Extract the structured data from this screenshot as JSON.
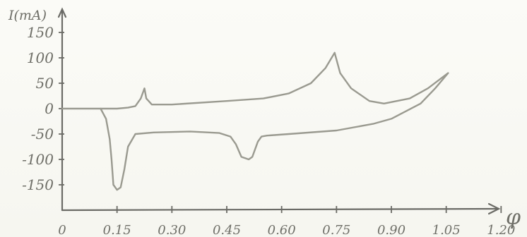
{
  "chart_data": {
    "type": "line",
    "title": "",
    "ylabel": "I(mA)",
    "xlabel": "φ",
    "xlim": [
      0,
      1.29
    ],
    "ylim": [
      -190,
      190
    ],
    "x_ticks": [
      "0",
      "0.15",
      "0.30",
      "0.45",
      "0.60",
      "0.75",
      "0.90",
      "1.05",
      "1.20"
    ],
    "x_tick_values": [
      0,
      0.15,
      0.3,
      0.45,
      0.6,
      0.75,
      0.9,
      1.05,
      1.2
    ],
    "y_ticks": [
      "150",
      "100",
      "50",
      "0",
      "-50",
      "-100",
      "-150"
    ],
    "y_tick_values": [
      150,
      100,
      50,
      0,
      -50,
      -100,
      -150
    ],
    "grid": false,
    "series": [
      {
        "values_xy": [
          [
            0.0,
            0
          ],
          [
            0.1,
            0
          ],
          [
            0.15,
            0
          ],
          [
            0.18,
            2
          ],
          [
            0.2,
            5
          ],
          [
            0.215,
            20
          ],
          [
            0.225,
            40
          ],
          [
            0.23,
            20
          ],
          [
            0.245,
            8
          ],
          [
            0.3,
            8
          ],
          [
            0.45,
            15
          ],
          [
            0.55,
            20
          ],
          [
            0.62,
            30
          ],
          [
            0.68,
            50
          ],
          [
            0.72,
            80
          ],
          [
            0.745,
            110
          ],
          [
            0.76,
            70
          ],
          [
            0.79,
            40
          ],
          [
            0.84,
            15
          ],
          [
            0.88,
            10
          ],
          [
            0.95,
            20
          ],
          [
            1.0,
            40
          ],
          [
            1.055,
            70
          ]
        ]
      },
      {
        "values_xy": [
          [
            1.055,
            70
          ],
          [
            1.02,
            40
          ],
          [
            0.98,
            10
          ],
          [
            0.9,
            -20
          ],
          [
            0.85,
            -30
          ],
          [
            0.75,
            -43
          ],
          [
            0.62,
            -50
          ],
          [
            0.56,
            -53
          ],
          [
            0.545,
            -55
          ],
          [
            0.535,
            -65
          ],
          [
            0.52,
            -95
          ],
          [
            0.51,
            -100
          ],
          [
            0.49,
            -95
          ],
          [
            0.475,
            -70
          ],
          [
            0.46,
            -55
          ],
          [
            0.43,
            -48
          ],
          [
            0.35,
            -45
          ],
          [
            0.25,
            -47
          ],
          [
            0.2,
            -50
          ],
          [
            0.18,
            -75
          ],
          [
            0.17,
            -120
          ],
          [
            0.16,
            -155
          ],
          [
            0.15,
            -160
          ],
          [
            0.14,
            -150
          ],
          [
            0.135,
            -100
          ],
          [
            0.13,
            -60
          ],
          [
            0.12,
            -20
          ],
          [
            0.105,
            0
          ]
        ]
      }
    ]
  }
}
